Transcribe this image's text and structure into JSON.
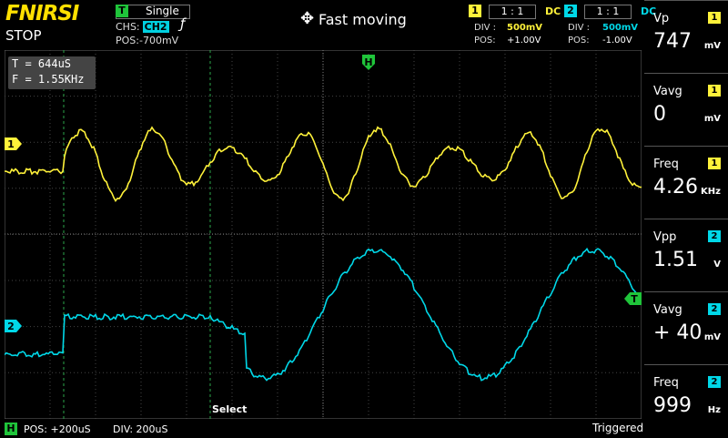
{
  "brand": "FNIRSI",
  "run_state": "STOP",
  "colors": {
    "ch1": "#fff23a",
    "ch2": "#00d8e8",
    "trigger": "#1fc43a"
  },
  "trigger": {
    "tag": "T",
    "mode": "Single",
    "source_label": "CHS:",
    "source": "CH2",
    "pos_label": "POS:",
    "pos": "-700mV",
    "edge_icon": "rising-edge-icon",
    "edge_glyph": "ƒ"
  },
  "mode_indicator": {
    "icon": "move-arrows-icon",
    "glyph": "✥",
    "label": "Fast moving"
  },
  "channels": [
    {
      "num": "1",
      "probe": "1 : 1",
      "coupling": "DC",
      "div_label": "DIV :",
      "div": "500mV",
      "pos_label": "POS:",
      "pos": "+1.00V"
    },
    {
      "num": "2",
      "probe": "1 : 1",
      "coupling": "DC",
      "div_label": "DIV :",
      "div": "500mV",
      "pos_label": "POS:",
      "pos": "-1.00V"
    }
  ],
  "cursor": {
    "t_line": "T = 644uS",
    "f_line": "F = 1.55KHz"
  },
  "markers": {
    "h": "H",
    "ch1": "1",
    "ch2": "2",
    "trigger_level": "T"
  },
  "select_label": "Select",
  "measurements": [
    {
      "name": "Vp",
      "ch": "1",
      "value": "747",
      "unit": "mV"
    },
    {
      "name": "Vavg",
      "ch": "1",
      "value": "0",
      "unit": "mV"
    },
    {
      "name": "Freq",
      "ch": "1",
      "value": "4.26",
      "unit": "KHz"
    },
    {
      "name": "Vpp",
      "ch": "2",
      "value": "1.51",
      "unit": "V"
    },
    {
      "name": "Vavg",
      "ch": "2",
      "value": "+  40",
      "unit": "mV"
    },
    {
      "name": "Freq",
      "ch": "2",
      "value": "999",
      "unit": "Hz"
    }
  ],
  "horizontal": {
    "tag": "H",
    "pos": "POS: +200uS",
    "div": "DIV: 200uS"
  },
  "status": "Triggered"
}
